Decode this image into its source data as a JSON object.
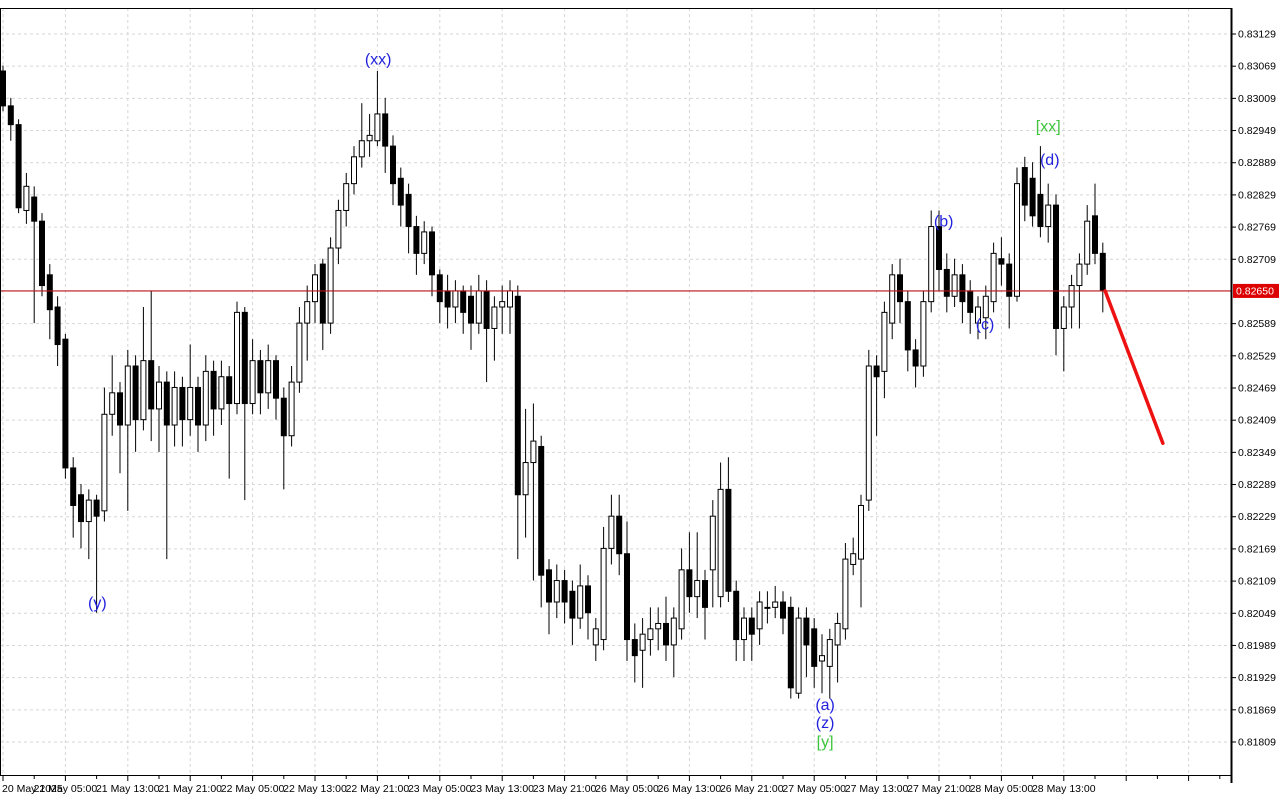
{
  "chart_data": {
    "type": "candlestick",
    "title": "",
    "instrument_timeframe_note": "",
    "colors": {
      "background": "#ffffff",
      "grid": "#d6d6d6",
      "border": "#000000",
      "bull_fill": "#ffffff",
      "bear_fill": "#000000",
      "outline": "#000000",
      "annotation_blue": "#2222dd",
      "annotation_green": "#3dc43d",
      "price_line": "#b81414",
      "price_tag_bg": "#dd0000",
      "price_tag_text": "#ffffff",
      "trend_line": "#ee1111"
    },
    "y_axis": {
      "side": "right",
      "tick_labels": [
        "0.83129",
        "0.83069",
        "0.83009",
        "0.82949",
        "0.82889",
        "0.82829",
        "0.82769",
        "0.82709",
        "0.82589",
        "0.82529",
        "0.82469",
        "0.82409",
        "0.82349",
        "0.82289",
        "0.82229",
        "0.82169",
        "0.82109",
        "0.82049",
        "0.81989",
        "0.81929",
        "0.81869",
        "0.81809"
      ],
      "tick_step": 0.0006
    },
    "x_axis": {
      "labels": [
        "20 May 2025",
        "21 May 05:00",
        "21 May 13:00",
        "21 May 21:00",
        "22 May 05:00",
        "22 May 13:00",
        "22 May 21:00",
        "23 May 05:00",
        "23 May 13:00",
        "23 May 21:00",
        "26 May 05:00",
        "26 May 13:00",
        "26 May 21:00",
        "27 May 05:00",
        "27 May 13:00",
        "27 May 21:00",
        "28 May 05:00",
        "28 May 13:00"
      ],
      "label_step_bars": 8,
      "minor_tick_bars": 4
    },
    "price_line": {
      "value": 0.8265,
      "label": "0.82650"
    },
    "trend_line": {
      "from_bar": 141.3,
      "from_price": 0.8265,
      "to_bar": 148.7,
      "to_price": 0.82366
    },
    "annotations": [
      {
        "text": "(xx)",
        "color": "blue",
        "bar": 48.1,
        "price": 0.83081
      },
      {
        "text": "(y)",
        "color": "blue",
        "bar": 12.1,
        "price": 0.82068
      },
      {
        "text": "(a)",
        "color": "blue",
        "bar": 105.4,
        "price": 0.81878
      },
      {
        "text": "(z)",
        "color": "blue",
        "bar": 105.4,
        "price": 0.81844
      },
      {
        "text": "[y]",
        "color": "green",
        "bar": 105.4,
        "price": 0.81809
      },
      {
        "text": "[xx]",
        "color": "green",
        "bar": 134.0,
        "price": 0.82957
      },
      {
        "text": "(d)",
        "color": "blue",
        "bar": 134.2,
        "price": 0.82894
      },
      {
        "text": "(b)",
        "color": "blue",
        "bar": 120.6,
        "price": 0.82779
      },
      {
        "text": "(c)",
        "color": "blue",
        "bar": 125.9,
        "price": 0.82587
      }
    ],
    "candles_format": [
      "open",
      "high",
      "low",
      "close"
    ],
    "candles": [
      [
        0.8306,
        0.8307,
        0.82985,
        0.82995
      ],
      [
        0.82995,
        0.8301,
        0.8293,
        0.8296
      ],
      [
        0.8296,
        0.8297,
        0.82795,
        0.82805
      ],
      [
        0.828,
        0.8287,
        0.82775,
        0.82845
      ],
      [
        0.82825,
        0.82845,
        0.8259,
        0.8278
      ],
      [
        0.8278,
        0.82795,
        0.8264,
        0.8266
      ],
      [
        0.8268,
        0.827,
        0.8256,
        0.82615
      ],
      [
        0.8262,
        0.8264,
        0.8251,
        0.8255
      ],
      [
        0.8256,
        0.8257,
        0.823,
        0.8232
      ],
      [
        0.8232,
        0.8234,
        0.8219,
        0.8225
      ],
      [
        0.8227,
        0.8229,
        0.8217,
        0.8222
      ],
      [
        0.8222,
        0.8228,
        0.8215,
        0.8226
      ],
      [
        0.8226,
        0.8227,
        0.8205,
        0.8223
      ],
      [
        0.8224,
        0.8247,
        0.8222,
        0.8242
      ],
      [
        0.8242,
        0.8253,
        0.8238,
        0.8246
      ],
      [
        0.8246,
        0.8248,
        0.8231,
        0.824
      ],
      [
        0.824,
        0.8254,
        0.8224,
        0.8251
      ],
      [
        0.8251,
        0.8253,
        0.8235,
        0.8241
      ],
      [
        0.8241,
        0.8262,
        0.8239,
        0.8252
      ],
      [
        0.8252,
        0.8265,
        0.8237,
        0.8243
      ],
      [
        0.8243,
        0.8251,
        0.8235,
        0.8248
      ],
      [
        0.8248,
        0.825,
        0.8215,
        0.824
      ],
      [
        0.824,
        0.825,
        0.8236,
        0.8247
      ],
      [
        0.8247,
        0.8249,
        0.8236,
        0.8241
      ],
      [
        0.8241,
        0.8255,
        0.8238,
        0.8247
      ],
      [
        0.8247,
        0.8249,
        0.8235,
        0.824
      ],
      [
        0.824,
        0.8253,
        0.8237,
        0.825
      ],
      [
        0.825,
        0.8252,
        0.8238,
        0.8243
      ],
      [
        0.8243,
        0.8252,
        0.824,
        0.8249
      ],
      [
        0.8249,
        0.8251,
        0.823,
        0.8244
      ],
      [
        0.8244,
        0.8263,
        0.8242,
        0.8261
      ],
      [
        0.8261,
        0.8262,
        0.8226,
        0.8244
      ],
      [
        0.8244,
        0.8256,
        0.8242,
        0.8252
      ],
      [
        0.8252,
        0.8254,
        0.8242,
        0.8246
      ],
      [
        0.8246,
        0.8255,
        0.8243,
        0.8252
      ],
      [
        0.8252,
        0.8253,
        0.8241,
        0.8245
      ],
      [
        0.8245,
        0.8247,
        0.8228,
        0.8238
      ],
      [
        0.8238,
        0.8251,
        0.8236,
        0.8248
      ],
      [
        0.8248,
        0.8262,
        0.8246,
        0.8259
      ],
      [
        0.8259,
        0.8266,
        0.8252,
        0.8263
      ],
      [
        0.8263,
        0.827,
        0.8259,
        0.8268
      ],
      [
        0.827,
        0.8271,
        0.8254,
        0.8259
      ],
      [
        0.8259,
        0.8275,
        0.8257,
        0.8273
      ],
      [
        0.8273,
        0.8282,
        0.827,
        0.828
      ],
      [
        0.828,
        0.8287,
        0.8277,
        0.8285
      ],
      [
        0.8285,
        0.8292,
        0.8283,
        0.829
      ],
      [
        0.829,
        0.83,
        0.8288,
        0.8293
      ],
      [
        0.8293,
        0.8298,
        0.829,
        0.8294
      ],
      [
        0.8293,
        0.8306,
        0.8292,
        0.8298
      ],
      [
        0.8298,
        0.8301,
        0.8287,
        0.8292
      ],
      [
        0.8292,
        0.8294,
        0.8281,
        0.8285
      ],
      [
        0.8286,
        0.8288,
        0.8277,
        0.8281
      ],
      [
        0.8283,
        0.8285,
        0.8272,
        0.8277
      ],
      [
        0.8277,
        0.8279,
        0.8268,
        0.8272
      ],
      [
        0.8272,
        0.8278,
        0.827,
        0.8276
      ],
      [
        0.8276,
        0.8277,
        0.8264,
        0.8268
      ],
      [
        0.8268,
        0.8269,
        0.8259,
        0.8263
      ],
      [
        0.8265,
        0.8268,
        0.8258,
        0.8262
      ],
      [
        0.8262,
        0.8267,
        0.8259,
        0.8265
      ],
      [
        0.8265,
        0.8266,
        0.8257,
        0.8261
      ],
      [
        0.8264,
        0.8266,
        0.8254,
        0.8259
      ],
      [
        0.8259,
        0.8268,
        0.8257,
        0.8265
      ],
      [
        0.8265,
        0.8267,
        0.8248,
        0.8258
      ],
      [
        0.8258,
        0.8264,
        0.8252,
        0.8262
      ],
      [
        0.8262,
        0.8266,
        0.8257,
        0.8263
      ],
      [
        0.8262,
        0.8267,
        0.8257,
        0.8265
      ],
      [
        0.8264,
        0.8266,
        0.8215,
        0.8227
      ],
      [
        0.8227,
        0.8243,
        0.8219,
        0.8233
      ],
      [
        0.8233,
        0.8244,
        0.8211,
        0.8237
      ],
      [
        0.8236,
        0.8238,
        0.8206,
        0.8212
      ],
      [
        0.8213,
        0.8215,
        0.8201,
        0.8207
      ],
      [
        0.8207,
        0.8214,
        0.8204,
        0.8211
      ],
      [
        0.8211,
        0.8213,
        0.8203,
        0.8207
      ],
      [
        0.8209,
        0.8211,
        0.8199,
        0.8204
      ],
      [
        0.8204,
        0.8214,
        0.8202,
        0.821
      ],
      [
        0.821,
        0.8212,
        0.82,
        0.8205
      ],
      [
        0.8199,
        0.8204,
        0.8196,
        0.8202
      ],
      [
        0.82,
        0.8221,
        0.8198,
        0.8217
      ],
      [
        0.8217,
        0.8227,
        0.8214,
        0.8223
      ],
      [
        0.8223,
        0.8227,
        0.8212,
        0.8216
      ],
      [
        0.8216,
        0.8222,
        0.8196,
        0.82
      ],
      [
        0.82,
        0.8203,
        0.8192,
        0.8197
      ],
      [
        0.8198,
        0.8204,
        0.8191,
        0.8201
      ],
      [
        0.82,
        0.8206,
        0.8197,
        0.8202
      ],
      [
        0.8202,
        0.8206,
        0.8198,
        0.8203
      ],
      [
        0.8203,
        0.8208,
        0.8196,
        0.8199
      ],
      [
        0.8199,
        0.8206,
        0.8193,
        0.8204
      ],
      [
        0.8202,
        0.8217,
        0.82,
        0.8213
      ],
      [
        0.8213,
        0.822,
        0.8205,
        0.8208
      ],
      [
        0.8208,
        0.822,
        0.8204,
        0.8211
      ],
      [
        0.8211,
        0.8213,
        0.82,
        0.8206
      ],
      [
        0.8213,
        0.8226,
        0.8206,
        0.8223
      ],
      [
        0.8208,
        0.8233,
        0.8206,
        0.8228
      ],
      [
        0.8228,
        0.8234,
        0.8207,
        0.8209
      ],
      [
        0.8209,
        0.8211,
        0.8196,
        0.82
      ],
      [
        0.82,
        0.8206,
        0.8196,
        0.8204
      ],
      [
        0.8204,
        0.8206,
        0.8196,
        0.8201
      ],
      [
        0.8202,
        0.8209,
        0.8199,
        0.8207
      ],
      [
        0.8206,
        0.8209,
        0.8203,
        0.8206
      ],
      [
        0.8206,
        0.821,
        0.8204,
        0.8207
      ],
      [
        0.8207,
        0.8209,
        0.8201,
        0.8204
      ],
      [
        0.8206,
        0.8208,
        0.8189,
        0.8191
      ],
      [
        0.819,
        0.8206,
        0.8189,
        0.8204
      ],
      [
        0.8204,
        0.8206,
        0.8193,
        0.8199
      ],
      [
        0.8202,
        0.8204,
        0.8191,
        0.8195
      ],
      [
        0.8196,
        0.8201,
        0.819,
        0.8197
      ],
      [
        0.8195,
        0.8202,
        0.8189,
        0.82
      ],
      [
        0.8199,
        0.8205,
        0.8192,
        0.8203
      ],
      [
        0.8202,
        0.8218,
        0.82,
        0.8215
      ],
      [
        0.8214,
        0.8219,
        0.8212,
        0.8216
      ],
      [
        0.8215,
        0.8227,
        0.8206,
        0.8225
      ],
      [
        0.8226,
        0.8254,
        0.8224,
        0.8251
      ],
      [
        0.8251,
        0.8253,
        0.8238,
        0.8249
      ],
      [
        0.825,
        0.8263,
        0.8245,
        0.8261
      ],
      [
        0.8259,
        0.827,
        0.8256,
        0.8268
      ],
      [
        0.8268,
        0.8271,
        0.8259,
        0.8263
      ],
      [
        0.8263,
        0.8265,
        0.825,
        0.8254
      ],
      [
        0.8254,
        0.8256,
        0.8247,
        0.8251
      ],
      [
        0.8251,
        0.8265,
        0.8249,
        0.8263
      ],
      [
        0.8263,
        0.828,
        0.8261,
        0.8277
      ],
      [
        0.8277,
        0.828,
        0.8265,
        0.8269
      ],
      [
        0.8269,
        0.8272,
        0.8261,
        0.8264
      ],
      [
        0.8264,
        0.8271,
        0.8262,
        0.8268
      ],
      [
        0.8268,
        0.827,
        0.8259,
        0.8263
      ],
      [
        0.8265,
        0.8267,
        0.8257,
        0.8261
      ],
      [
        0.8259,
        0.8264,
        0.8256,
        0.8262
      ],
      [
        0.826,
        0.8266,
        0.8256,
        0.8264
      ],
      [
        0.8263,
        0.8274,
        0.8261,
        0.8272
      ],
      [
        0.8271,
        0.8275,
        0.8266,
        0.827
      ],
      [
        0.827,
        0.8272,
        0.8258,
        0.8264
      ],
      [
        0.8264,
        0.8288,
        0.8263,
        0.8285
      ],
      [
        0.8288,
        0.829,
        0.8278,
        0.8281
      ],
      [
        0.8286,
        0.8289,
        0.8277,
        0.8279
      ],
      [
        0.8283,
        0.8292,
        0.8275,
        0.8277
      ],
      [
        0.8277,
        0.8285,
        0.8274,
        0.8281
      ],
      [
        0.8281,
        0.8283,
        0.8253,
        0.8258
      ],
      [
        0.8258,
        0.8264,
        0.825,
        0.8262
      ],
      [
        0.8262,
        0.8268,
        0.8258,
        0.8266
      ],
      [
        0.8266,
        0.8272,
        0.8258,
        0.827
      ],
      [
        0.827,
        0.8281,
        0.8268,
        0.8278
      ],
      [
        0.8279,
        0.8285,
        0.827,
        0.8272
      ],
      [
        0.8272,
        0.8274,
        0.8261,
        0.8265
      ]
    ]
  }
}
